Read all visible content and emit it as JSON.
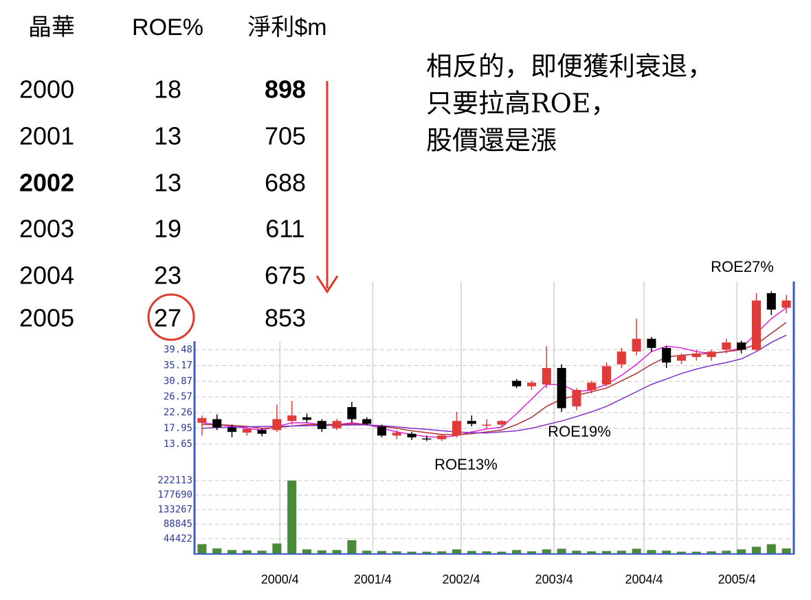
{
  "table": {
    "header": [
      "晶華",
      "ROE%",
      "淨利$m"
    ],
    "rows": [
      [
        2000,
        18,
        898
      ],
      [
        2001,
        13,
        705
      ],
      [
        2002,
        13,
        688
      ],
      [
        2003,
        19,
        611
      ],
      [
        2004,
        23,
        675
      ],
      [
        2005,
        27,
        853
      ]
    ]
  },
  "note": [
    "相反的，即便獲利衰退，",
    "只要拉高ROE，",
    "股價還是漲"
  ],
  "chart_data": {
    "type": "candlestick",
    "annotations": [
      "ROE27%",
      "ROE19%",
      "ROE13%"
    ],
    "open": [
      19.5,
      20.5,
      18.2,
      16.8,
      17.5,
      17.5,
      20,
      21,
      20,
      18,
      23.8,
      20.5,
      18.5,
      16,
      16.5,
      15.2,
      15,
      16,
      20,
      18.8,
      19,
      31,
      29.5,
      30,
      34.5,
      24,
      28.5,
      30,
      35.5,
      39,
      42.5,
      40,
      36.5,
      37.5,
      37.5,
      39.5,
      41.5,
      39.5,
      55,
      51
    ],
    "high": [
      21.5,
      21.8,
      19,
      18.5,
      18,
      24.5,
      25.5,
      22,
      20.5,
      20.5,
      25.2,
      21,
      19,
      17.5,
      17,
      16,
      16.5,
      22.5,
      21.5,
      20.5,
      20.2,
      31.5,
      31,
      40.5,
      35.5,
      29,
      31,
      36,
      40,
      48,
      43,
      40.5,
      38.5,
      39.5,
      39.5,
      42.5,
      42,
      55,
      55.5,
      54.5
    ],
    "low": [
      16,
      17.5,
      15.5,
      16,
      15.8,
      17,
      19,
      19.5,
      17,
      17.5,
      19.5,
      18.8,
      15.5,
      15,
      14.8,
      14.5,
      14.5,
      15.5,
      18.5,
      18,
      18.5,
      29,
      28.5,
      29,
      22.5,
      23,
      27.5,
      29.5,
      34.5,
      38,
      39,
      34.5,
      35.5,
      36.5,
      36.5,
      38.5,
      38.5,
      39,
      49,
      49.5
    ],
    "close": [
      20.8,
      18.2,
      17,
      17.8,
      16.5,
      20.5,
      21.5,
      20.3,
      17.8,
      20,
      20.5,
      19.2,
      16,
      16.8,
      15.5,
      15,
      16,
      20,
      19.2,
      19,
      20,
      29.5,
      30.5,
      34.5,
      23.5,
      28.5,
      30.5,
      35,
      39,
      42.5,
      40,
      36,
      38,
      38.5,
      39,
      41.5,
      39.5,
      53,
      50.5,
      53
    ],
    "volume": [
      28000,
      15000,
      10000,
      9000,
      8000,
      30000,
      222000,
      12000,
      9000,
      10000,
      40000,
      8000,
      7000,
      6000,
      5000,
      5000,
      6000,
      12000,
      7000,
      6000,
      5000,
      10000,
      6000,
      12000,
      14000,
      8000,
      6000,
      7000,
      8000,
      14000,
      10000,
      8000,
      5000,
      5000,
      6000,
      8000,
      12000,
      20000,
      28000,
      15000
    ],
    "lines": [
      {
        "color": "#e020e0",
        "values": [
          19.5,
          19,
          18.5,
          18,
          17.5,
          18.5,
          19.5,
          19.5,
          19,
          19,
          19.5,
          19,
          18,
          17,
          16.3,
          15.7,
          15.5,
          16,
          17,
          17.8,
          18.3,
          22,
          26,
          30,
          30,
          28,
          28.5,
          30,
          32.5,
          35.5,
          39,
          40.5,
          40,
          39,
          38.5,
          39,
          40,
          44,
          48,
          51
        ]
      },
      {
        "color": "#b03030",
        "values": [
          19,
          19,
          18.8,
          18.5,
          18,
          18.2,
          18.6,
          19,
          19,
          19,
          19.2,
          19,
          18.5,
          18,
          17.3,
          16.8,
          16.3,
          16.2,
          16.5,
          17,
          17.5,
          19,
          21,
          24,
          26,
          27,
          28,
          29,
          31,
          33,
          35.5,
          37.5,
          38,
          38.3,
          38.5,
          39,
          39.5,
          41,
          44,
          47
        ]
      },
      {
        "color": "#8030d0",
        "values": [
          18,
          18.2,
          18.3,
          18.4,
          18.5,
          18.5,
          18.6,
          18.7,
          18.8,
          18.8,
          18.9,
          18.9,
          18.7,
          18.4,
          18,
          17.7,
          17.3,
          17,
          16.8,
          16.7,
          17,
          17.3,
          18,
          19,
          20,
          21.2,
          22.5,
          24,
          26,
          28,
          30,
          31.5,
          33,
          34.2,
          35.2,
          36,
          37,
          39,
          41.5,
          43.5
        ]
      }
    ],
    "up_color": "#e03a3a",
    "down_color": "#000000",
    "volume_color": "#4a8a3a",
    "xlim": [
      0,
      40
    ],
    "xticks": [
      {
        "value": 5.7,
        "label": "2000/4"
      },
      {
        "value": 11.9,
        "label": "2001/4"
      },
      {
        "value": 17.8,
        "label": "2002/4"
      },
      {
        "value": 24.0,
        "label": "2003/4"
      },
      {
        "value": 30.0,
        "label": "2004/4"
      },
      {
        "value": 36.2,
        "label": "2005/4"
      }
    ],
    "ylim": [
      11.2,
      58.2
    ],
    "yticks": [
      13.65,
      17.95,
      22.26,
      26.57,
      30.87,
      35.17,
      39.48
    ],
    "volume_ylim": [
      0,
      243000
    ],
    "volume_ticks": [
      44422,
      88845,
      133267,
      177690,
      222113
    ],
    "grid": true
  }
}
